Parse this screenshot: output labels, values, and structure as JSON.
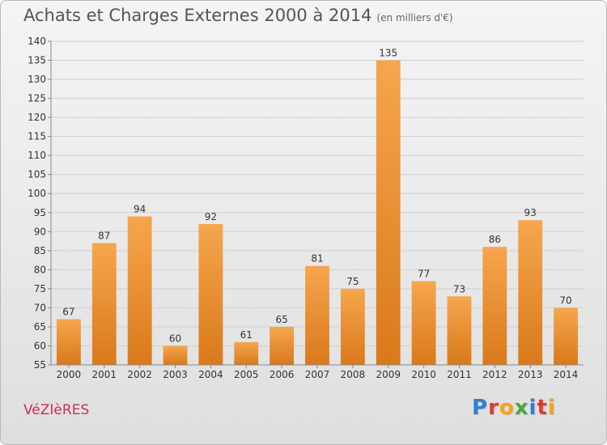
{
  "header": {
    "title": "Achats et Charges Externes 2000 à 2014",
    "subtitle": "(en milliers d'€)"
  },
  "footer": {
    "commune": "VéZIèRES",
    "logo_letters": [
      {
        "char": "P",
        "color": "#2f7fd3"
      },
      {
        "char": "r",
        "color": "#e8352b"
      },
      {
        "char": "o",
        "color": "#f6a21a"
      },
      {
        "char": "x",
        "color": "#4aa83a"
      },
      {
        "char": "i",
        "color": "#2f7fd3"
      },
      {
        "char": "t",
        "color": "#e8352b"
      },
      {
        "char": "i",
        "color": "#f6a21a"
      }
    ]
  },
  "colors": {
    "bar_light": "#f6a64d",
    "bar_dark": "#d9791b",
    "grid": "#d0d0d0",
    "axis_text": "#333333"
  },
  "chart_data": {
    "type": "bar",
    "title": "Achats et Charges Externes 2000 à 2014",
    "subtitle": "(en milliers d'€)",
    "categories": [
      "2000",
      "2001",
      "2002",
      "2003",
      "2004",
      "2005",
      "2006",
      "2007",
      "2008",
      "2009",
      "2010",
      "2011",
      "2012",
      "2013",
      "2014"
    ],
    "values": [
      67,
      87,
      94,
      60,
      92,
      61,
      65,
      81,
      75,
      135,
      77,
      73,
      86,
      93,
      70
    ],
    "ylim": [
      55,
      140
    ],
    "yticks": [
      55,
      60,
      65,
      70,
      75,
      80,
      85,
      90,
      95,
      100,
      105,
      110,
      115,
      120,
      125,
      130,
      135,
      140
    ],
    "grid": true,
    "xlabel": "",
    "ylabel": ""
  }
}
